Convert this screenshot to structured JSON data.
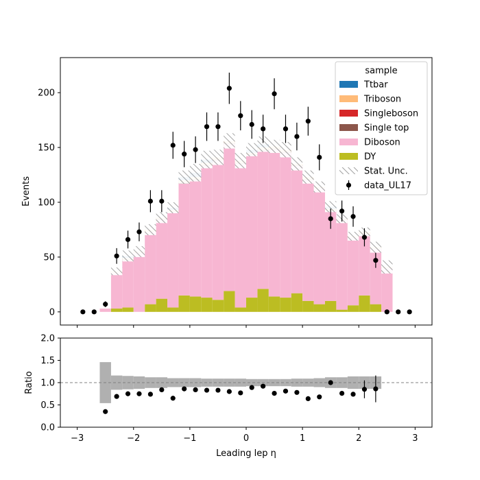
{
  "chart_data": {
    "type": "bar",
    "subtype": "stacked-histogram-with-ratio",
    "xlabel": "Leading lep η",
    "ylabel": "Events",
    "ratio_ylabel": "Ratio",
    "xlim": [
      -3.3,
      3.3
    ],
    "ylim": [
      -12,
      232
    ],
    "ratio_ylim": [
      0.0,
      2.0
    ],
    "x_ticks": [
      -3,
      -2,
      -1,
      0,
      1,
      2,
      3
    ],
    "x_tick_labels": [
      "−3",
      "−2",
      "−1",
      "0",
      "1",
      "2",
      "3"
    ],
    "y_ticks": [
      0,
      50,
      100,
      150,
      200
    ],
    "y_tick_labels": [
      "0",
      "50",
      "100",
      "150",
      "200"
    ],
    "ratio_y_ticks": [
      0.0,
      0.5,
      1.0,
      1.5,
      2.0
    ],
    "ratio_y_tick_labels": [
      "0.0",
      "0.5",
      "1.0",
      "1.5",
      "2.0"
    ],
    "bin_edges": [
      -3.0,
      -2.8,
      -2.6,
      -2.4,
      -2.2,
      -2.0,
      -1.8,
      -1.6,
      -1.4,
      -1.2,
      -1.0,
      -0.8,
      -0.6,
      -0.4,
      -0.2,
      0.0,
      0.2,
      0.4,
      0.6,
      0.8,
      1.0,
      1.2,
      1.4,
      1.6,
      1.8,
      2.0,
      2.2,
      2.4,
      2.6,
      2.8,
      3.0
    ],
    "stack": [
      {
        "name": "DY",
        "color": "#bcbd22",
        "values": [
          0,
          0,
          0,
          3,
          4,
          0,
          7,
          12,
          4,
          15,
          14,
          13,
          11,
          19,
          4,
          13,
          21,
          14,
          13,
          17,
          10,
          7,
          10,
          2,
          6,
          15,
          7,
          0,
          0,
          0
        ]
      },
      {
        "name": "Diboson",
        "color": "#f7b6d2",
        "values": [
          0,
          0,
          3,
          33,
          43,
          54,
          66,
          72,
          87,
          102,
          106,
          120,
          127,
          134,
          131,
          130,
          126,
          134,
          132,
          116,
          110,
          106,
          82,
          82,
          62,
          56,
          51,
          40,
          0,
          0
        ]
      },
      {
        "name": "Single top",
        "color": "#8c564b",
        "values": [
          0,
          0,
          0,
          0,
          1,
          0,
          0,
          1,
          0,
          1,
          1,
          1,
          1,
          1,
          1,
          1,
          1,
          1,
          1,
          1,
          1,
          0,
          0,
          0,
          0,
          0,
          0,
          0,
          0,
          0
        ]
      },
      {
        "name": "Singleboson",
        "color": "#d62728",
        "values": [
          0,
          0,
          0,
          0,
          0,
          0,
          0,
          0,
          0,
          0,
          0,
          0,
          0,
          0,
          0,
          0,
          0,
          0,
          0,
          0,
          0,
          0,
          0,
          0,
          0,
          0,
          0,
          0,
          0,
          0
        ]
      },
      {
        "name": "Triboson",
        "color": "#ffbb78",
        "values": [
          0,
          0,
          0,
          1,
          1,
          1,
          2,
          1,
          2,
          2,
          2,
          2,
          2,
          2,
          2,
          1,
          2,
          2,
          2,
          1,
          2,
          1,
          2,
          1,
          1,
          2,
          1,
          1,
          0,
          0
        ]
      },
      {
        "name": "Ttbar",
        "color": "#1f77b4",
        "values": [
          0,
          0,
          0,
          0,
          2,
          0,
          0,
          0,
          2,
          3,
          4,
          3,
          0,
          0,
          0,
          3,
          3,
          0,
          0,
          0,
          0,
          0,
          2,
          0,
          0,
          0,
          0,
          0,
          0,
          0
        ]
      }
    ],
    "stat_unc": [
      0,
      0,
      0,
      3.5,
      5,
      5,
      5,
      5,
      5,
      6,
      8,
      8,
      7,
      7,
      7,
      6,
      7,
      6,
      7,
      6,
      6,
      5,
      5,
      4,
      4,
      4,
      5,
      6,
      0,
      0
    ],
    "data": {
      "name": "data_UL17",
      "x": [
        -2.9,
        -2.7,
        -2.5,
        -2.3,
        -2.1,
        -1.9,
        -1.7,
        -1.5,
        -1.3,
        -1.1,
        -0.9,
        -0.7,
        -0.5,
        -0.3,
        -0.1,
        0.1,
        0.3,
        0.5,
        0.7,
        0.9,
        1.1,
        1.3,
        1.5,
        1.7,
        1.9,
        2.1,
        2.3,
        2.5,
        2.7,
        2.9
      ],
      "y": [
        0,
        0,
        7,
        51,
        66,
        73,
        101,
        101,
        152,
        144,
        148,
        169,
        169,
        204,
        179,
        171,
        167,
        199,
        167,
        160,
        174,
        141,
        85,
        92,
        87,
        68,
        47,
        0,
        0,
        0
      ]
    },
    "ratio_points": {
      "x": [
        -2.5,
        -2.3,
        -2.1,
        -1.9,
        -1.7,
        -1.5,
        -1.3,
        -1.1,
        -0.9,
        -0.7,
        -0.5,
        -0.3,
        -0.1,
        0.1,
        0.3,
        0.5,
        0.7,
        0.9,
        1.1,
        1.3,
        1.5,
        1.7,
        1.9,
        2.1,
        2.3
      ],
      "y": [
        0.35,
        0.69,
        0.75,
        0.75,
        0.74,
        0.84,
        0.65,
        0.86,
        0.84,
        0.83,
        0.83,
        0.8,
        0.77,
        0.89,
        0.92,
        0.76,
        0.81,
        0.78,
        0.64,
        0.68,
        1.0,
        0.76,
        0.74,
        0.85,
        0.86
      ],
      "yerr": [
        0,
        0,
        0,
        0,
        0,
        0,
        0,
        0,
        0,
        0,
        0,
        0,
        0,
        0,
        0,
        0,
        0,
        0,
        0,
        0,
        0,
        0,
        0,
        0.2,
        0.3
      ]
    },
    "ratio_band": [
      0,
      0,
      0.46,
      0.16,
      0.15,
      0.14,
      0.12,
      0.12,
      0.1,
      0.1,
      0.1,
      0.09,
      0.09,
      0.09,
      0.09,
      0.08,
      0.08,
      0.08,
      0.08,
      0.09,
      0.09,
      0.1,
      0.12,
      0.12,
      0.14,
      0.14,
      0.14,
      0,
      0,
      0
    ],
    "ratio_ref_line": 1.0,
    "legend": {
      "title": "sample",
      "position": "top-right",
      "entries": [
        "Ttbar",
        "Triboson",
        "Singleboson",
        "Single top",
        "Diboson",
        "DY",
        "Stat. Unc.",
        "data_UL17"
      ]
    }
  }
}
